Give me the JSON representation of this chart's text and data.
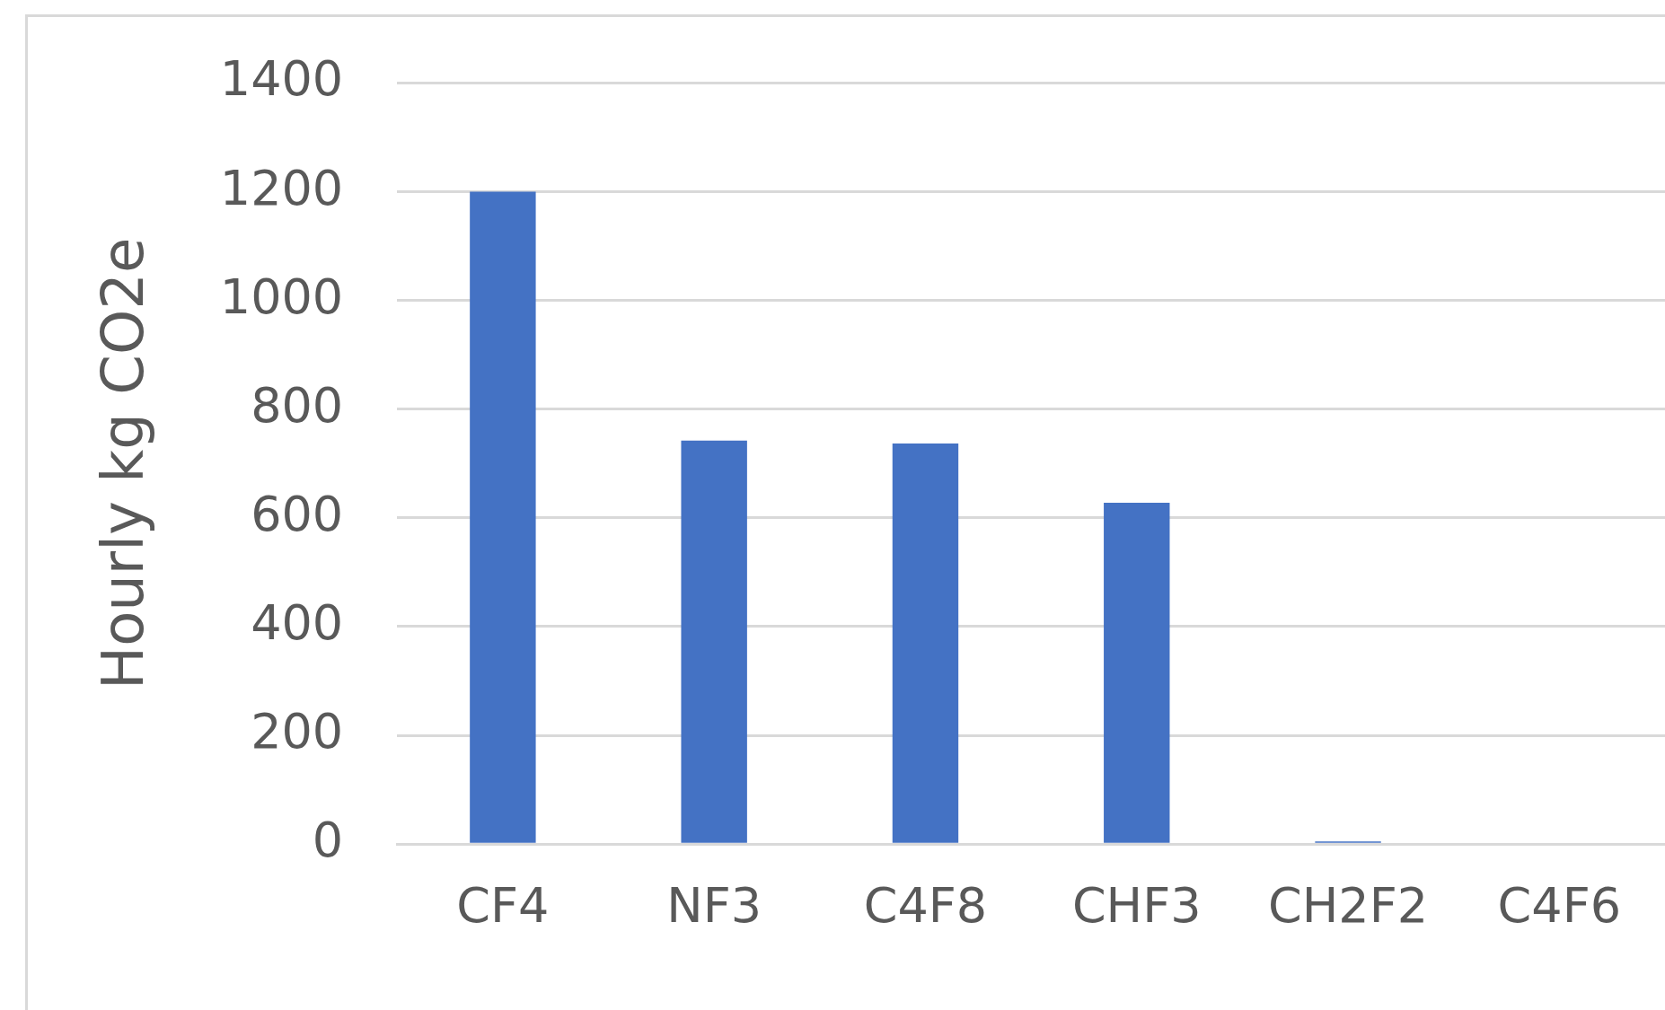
{
  "chart_data": {
    "type": "bar",
    "ylabel": "Hourly kg CO2e",
    "categories": [
      "CF4",
      "NF3",
      "C4F8",
      "CHF3",
      "CH2F2",
      "C4F6"
    ],
    "values": [
      1200,
      742,
      737,
      628,
      5,
      0
    ],
    "color": "#4472c4",
    "ylim": [
      0,
      1400
    ],
    "yticks": [
      0,
      200,
      400,
      600,
      800,
      1000,
      1200,
      1400
    ],
    "grid": "y"
  }
}
